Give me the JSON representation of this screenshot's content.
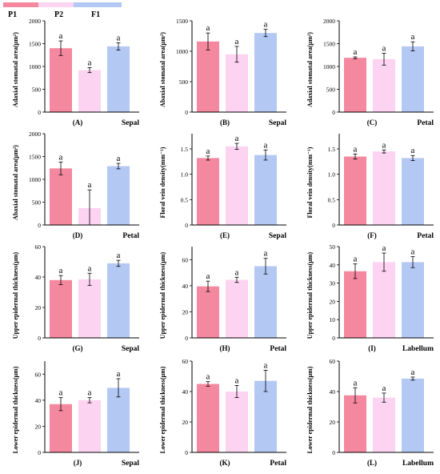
{
  "legend": {
    "series": [
      {
        "name": "P1",
        "color": "#f4889f"
      },
      {
        "name": "P2",
        "color": "#fcd3f0"
      },
      {
        "name": "F1",
        "color": "#b4c8f4"
      }
    ]
  },
  "chart_data": [
    {
      "type": "bar",
      "panel": "(A)",
      "organ": "Sepal",
      "ylabel": "Adaxial stomatal area(μm²)",
      "ylim": [
        0,
        2000
      ],
      "yticks": [
        0,
        500,
        1000,
        1500,
        2000
      ],
      "categories": [
        "P1",
        "P2",
        "F1"
      ],
      "values": [
        1400,
        920,
        1440
      ],
      "errors": [
        160,
        55,
        80
      ],
      "sig": [
        "a",
        "a",
        "a"
      ]
    },
    {
      "type": "bar",
      "panel": "(B)",
      "organ": "Sepal",
      "ylabel": "Abaxial stomatal area(μm²)",
      "ylim": [
        0,
        1500
      ],
      "yticks": [
        0,
        500,
        1000,
        1500
      ],
      "categories": [
        "P1",
        "P2",
        "F1"
      ],
      "values": [
        1160,
        950,
        1300
      ],
      "errors": [
        140,
        130,
        60
      ],
      "sig": [
        "a",
        "a",
        "a"
      ]
    },
    {
      "type": "bar",
      "panel": "(C)",
      "organ": "Petal",
      "ylabel": "Adaxial stomatal area(μm²)",
      "ylim": [
        0,
        2000
      ],
      "yticks": [
        0,
        500,
        1000,
        1500,
        2000
      ],
      "categories": [
        "P1",
        "P2",
        "F1"
      ],
      "values": [
        1190,
        1160,
        1440
      ],
      "errors": [
        20,
        130,
        100
      ],
      "sig": [
        "a",
        "a",
        "a"
      ]
    },
    {
      "type": "bar",
      "panel": "(D)",
      "organ": "Petal",
      "ylabel": "Abaxial stomatal area(μm²)",
      "ylim": [
        0,
        2000
      ],
      "yticks": [
        0,
        500,
        1000,
        1500,
        2000
      ],
      "categories": [
        "P1",
        "P2",
        "F1"
      ],
      "values": [
        1240,
        370,
        1290
      ],
      "errors": [
        140,
        400,
        60
      ],
      "sig": [
        "a",
        "a",
        "a"
      ]
    },
    {
      "type": "bar",
      "panel": "(E)",
      "organ": "Sepal",
      "ylabel": "Floral vein density(mm⁻¹)",
      "ylim": [
        0,
        1.8
      ],
      "yticks": [
        0,
        0.5,
        1.0,
        1.5
      ],
      "ytick_labels": [
        "0",
        "0.5",
        "1.0",
        "1.5"
      ],
      "categories": [
        "P1",
        "P2",
        "F1"
      ],
      "values": [
        1.32,
        1.55,
        1.38
      ],
      "errors": [
        0.04,
        0.06,
        0.1
      ],
      "sig": [
        "a",
        "a",
        "a"
      ]
    },
    {
      "type": "bar",
      "panel": "(F)",
      "organ": "Petal",
      "ylabel": "Floral vein density(mm⁻¹)",
      "ylim": [
        0,
        1.8
      ],
      "yticks": [
        0,
        0.5,
        1.0,
        1.5
      ],
      "ytick_labels": [
        "0",
        "0.5",
        "1.0",
        "1.5"
      ],
      "categories": [
        "P1",
        "P2",
        "F1"
      ],
      "values": [
        1.35,
        1.45,
        1.32
      ],
      "errors": [
        0.05,
        0.03,
        0.05
      ],
      "sig": [
        "a",
        "a",
        "a"
      ]
    },
    {
      "type": "bar",
      "panel": "(G)",
      "organ": "Sepal",
      "ylabel": "Upper epidermal thickness(μm)",
      "ylim": [
        0,
        60
      ],
      "yticks": [
        0,
        20,
        40,
        60
      ],
      "categories": [
        "P1",
        "P2",
        "F1"
      ],
      "values": [
        38,
        38.5,
        49
      ],
      "errors": [
        3,
        4,
        2
      ],
      "sig": [
        "a",
        "a",
        "a"
      ]
    },
    {
      "type": "bar",
      "panel": "(H)",
      "organ": "Petal",
      "ylabel": "Upper epidermal thickness(μm)",
      "ylim": [
        0,
        70
      ],
      "yticks": [
        0,
        20,
        40,
        60
      ],
      "categories": [
        "P1",
        "P2",
        "F1"
      ],
      "values": [
        39.5,
        44.5,
        55
      ],
      "errors": [
        4,
        2,
        6
      ],
      "sig": [
        "a",
        "a",
        "a"
      ]
    },
    {
      "type": "bar",
      "panel": "(I)",
      "organ": "Labellum",
      "ylabel": "Upper epidermal thickness(μm)",
      "ylim": [
        0,
        50
      ],
      "yticks": [
        0,
        10,
        20,
        30,
        40,
        50
      ],
      "categories": [
        "P1",
        "P2",
        "F1"
      ],
      "values": [
        36.5,
        41.5,
        41.5
      ],
      "errors": [
        4,
        5,
        3
      ],
      "sig": [
        "a",
        "a",
        "a"
      ]
    },
    {
      "type": "bar",
      "panel": "(J)",
      "organ": "Sepal",
      "ylabel": "Lower epidermal thickness(μm)",
      "ylim": [
        0,
        70
      ],
      "yticks": [
        0,
        20,
        40,
        60
      ],
      "categories": [
        "P1",
        "P2",
        "F1"
      ],
      "values": [
        37,
        40,
        49.5
      ],
      "errors": [
        5,
        2,
        7
      ],
      "sig": [
        "a",
        "a",
        "a"
      ]
    },
    {
      "type": "bar",
      "panel": "(K)",
      "organ": "Petal",
      "ylabel": "Lower epidermal thickness(μm)",
      "ylim": [
        0,
        60
      ],
      "yticks": [
        0,
        20,
        40,
        60
      ],
      "categories": [
        "P1",
        "P2",
        "F1"
      ],
      "values": [
        45,
        40,
        47
      ],
      "errors": [
        1.5,
        4,
        7
      ],
      "sig": [
        "a",
        "a",
        "a"
      ]
    },
    {
      "type": "bar",
      "panel": "(L)",
      "organ": "Labellum",
      "ylabel": "Lower epidermal thickness(μm)",
      "ylim": [
        0,
        60
      ],
      "yticks": [
        0,
        20,
        40,
        60
      ],
      "categories": [
        "P1",
        "P2",
        "F1"
      ],
      "values": [
        37.5,
        36,
        48.5
      ],
      "errors": [
        5,
        3,
        1
      ],
      "sig": [
        "a",
        "a",
        "a"
      ]
    }
  ]
}
